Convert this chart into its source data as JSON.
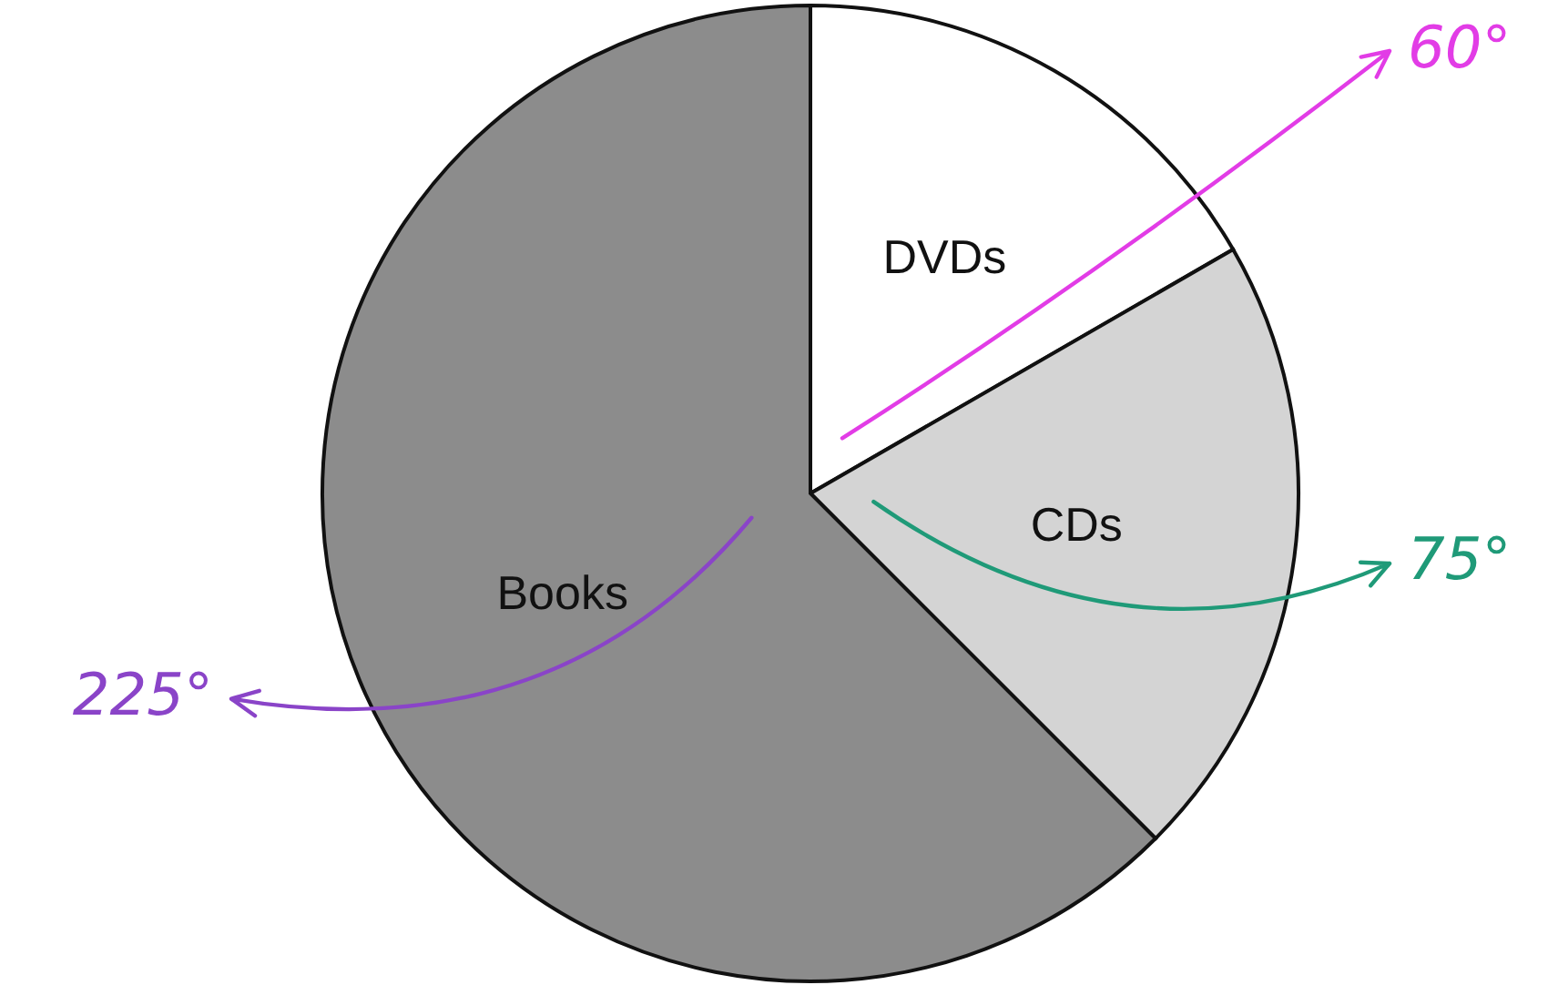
{
  "chart_data": {
    "type": "pie",
    "categories": [
      "DVDs",
      "CDs",
      "Books"
    ],
    "values": [
      60,
      75,
      225
    ],
    "colors": [
      "#ffffff",
      "#d4d4d4",
      "#8c8c8c"
    ],
    "value_labels": [
      "60°",
      "75°",
      "225°"
    ],
    "legend": false
  }
}
